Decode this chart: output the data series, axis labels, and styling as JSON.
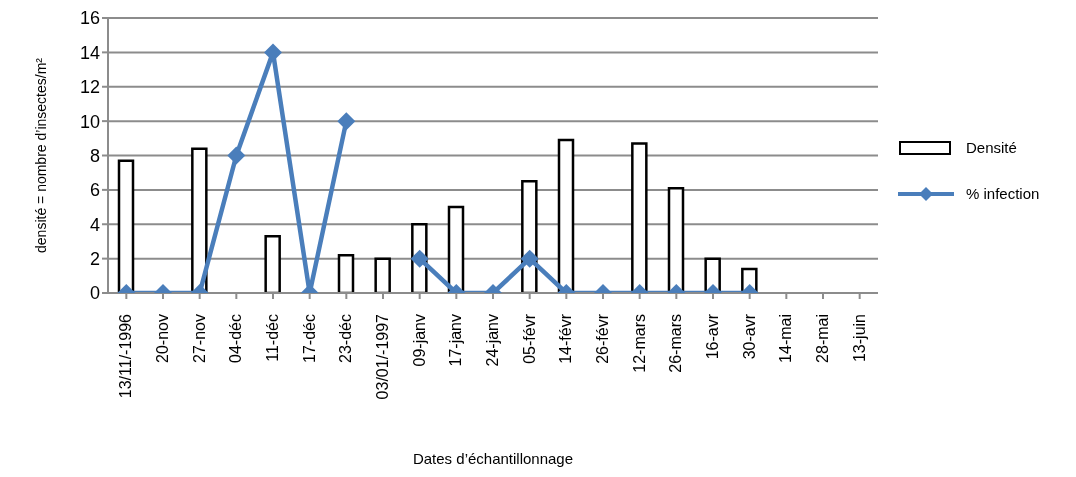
{
  "chart_data": {
    "type": "bar",
    "xlabel": "Dates d’échantillonnage",
    "ylabel": "densité = nombre d’insectes/m²",
    "categories": [
      "13/11/-1996",
      "20-nov",
      "27-nov",
      "04-déc",
      "11-déc",
      "17-déc",
      "23-déc",
      "03/01/-1997",
      "09-janv",
      "17-janv",
      "24-janv",
      "05-févr",
      "14-févr",
      "26-févr",
      "12-mars",
      "26-mars",
      "16-avr",
      "30-avr",
      "14-mai",
      "28-mai",
      "13-juin"
    ],
    "series": [
      {
        "name": "Densité",
        "color": "#000000",
        "values": [
          7.7,
          null,
          8.4,
          null,
          3.3,
          null,
          2.2,
          2.0,
          4.0,
          5.0,
          null,
          6.5,
          8.9,
          null,
          8.7,
          6.1,
          2.0,
          1.4,
          null,
          null,
          null
        ]
      },
      {
        "name": "% infection",
        "type": "line",
        "color": "#4a7ebb",
        "marker": "diamond",
        "values": [
          0,
          0,
          0,
          8,
          14,
          0,
          10,
          null,
          2,
          0,
          0,
          2,
          0,
          0,
          0,
          0,
          0,
          0,
          null,
          null,
          null
        ]
      }
    ],
    "ylim": [
      0,
      16
    ],
    "yticks": [
      0,
      2,
      4,
      6,
      8,
      10,
      12,
      14,
      16
    ],
    "grid": "y",
    "legend": "right"
  }
}
